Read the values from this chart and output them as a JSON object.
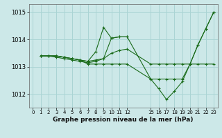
{
  "xlabel": "Graphe pression niveau de la mer (hPa)",
  "background_color": "#cce8e8",
  "grid_color": "#aad4d4",
  "line_color": "#1a6b1a",
  "xlim": [
    -0.5,
    23.5
  ],
  "ylim": [
    1011.5,
    1015.3
  ],
  "yticks": [
    1012,
    1013,
    1014,
    1015
  ],
  "xticks": [
    0,
    1,
    2,
    3,
    4,
    5,
    6,
    7,
    8,
    9,
    10,
    11,
    12,
    15,
    16,
    17,
    18,
    19,
    20,
    21,
    22,
    23
  ],
  "series": [
    {
      "x": [
        1,
        2,
        3,
        4,
        5,
        6,
        7,
        8,
        9,
        10,
        11,
        12,
        15,
        16,
        17,
        18,
        19,
        20,
        21,
        22,
        23
      ],
      "y": [
        1013.4,
        1013.4,
        1013.35,
        1013.3,
        1013.25,
        1013.2,
        1013.15,
        1013.2,
        1013.3,
        1013.5,
        1013.6,
        1013.65,
        1013.1,
        1013.1,
        1013.1,
        1013.1,
        1013.1,
        1013.1,
        1013.8,
        1014.4,
        1015.0
      ]
    },
    {
      "x": [
        1,
        2,
        3,
        4,
        5,
        6,
        7,
        8,
        9,
        10,
        11,
        12
      ],
      "y": [
        1013.4,
        1013.4,
        1013.4,
        1013.35,
        1013.3,
        1013.25,
        1013.2,
        1013.55,
        1014.45,
        1014.05,
        1014.1,
        1014.1
      ]
    },
    {
      "x": [
        1,
        2,
        3,
        4,
        5,
        6,
        7,
        8,
        9,
        10,
        11,
        12,
        15,
        16,
        17,
        18,
        19,
        20,
        21,
        22,
        23
      ],
      "y": [
        1013.4,
        1013.4,
        1013.4,
        1013.35,
        1013.3,
        1013.25,
        1013.2,
        1013.25,
        1013.3,
        1014.05,
        1014.1,
        1014.1,
        1012.55,
        1012.2,
        1011.8,
        1012.1,
        1012.45,
        1013.1,
        1013.8,
        1014.4,
        1015.0
      ]
    },
    {
      "x": [
        1,
        2,
        3,
        4,
        5,
        6,
        7,
        8,
        9,
        10,
        11,
        12,
        15,
        16,
        17,
        18,
        19,
        20,
        21,
        22,
        23
      ],
      "y": [
        1013.4,
        1013.4,
        1013.4,
        1013.35,
        1013.3,
        1013.25,
        1013.1,
        1013.1,
        1013.1,
        1013.1,
        1013.1,
        1013.1,
        1012.55,
        1012.55,
        1012.55,
        1012.55,
        1012.55,
        1013.1,
        1013.1,
        1013.1,
        1013.1
      ]
    }
  ]
}
